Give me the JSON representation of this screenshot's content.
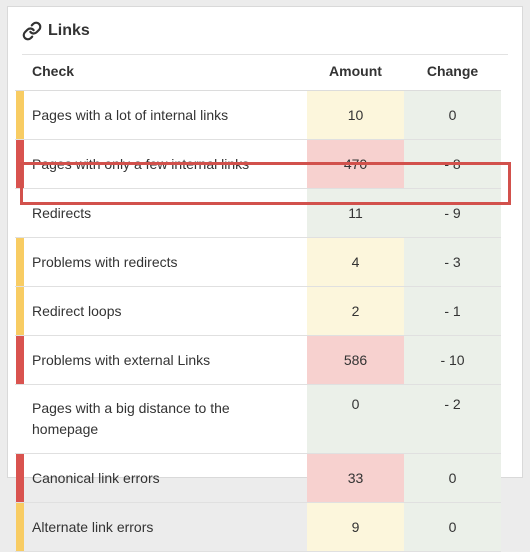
{
  "panel": {
    "title": "Links",
    "icon": "link-icon"
  },
  "table": {
    "headers": {
      "check": "Check",
      "amount": "Amount",
      "change": "Change"
    },
    "rows": [
      {
        "check": "Pages with a lot of internal links",
        "amount": "10",
        "change": "0",
        "severity": "warning"
      },
      {
        "check": "Pages with only a few internal links",
        "amount": "470",
        "change": "- 8",
        "severity": "error"
      },
      {
        "check": "Redirects",
        "amount": "11",
        "change": "- 9",
        "severity": "none",
        "highlighted": true
      },
      {
        "check": "Problems with redirects",
        "amount": "4",
        "change": "- 3",
        "severity": "warning"
      },
      {
        "check": "Redirect loops",
        "amount": "2",
        "change": "- 1",
        "severity": "warning"
      },
      {
        "check": "Problems with external Links",
        "amount": "586",
        "change": "- 10",
        "severity": "error"
      },
      {
        "check": "Pages with a big distance to the homepage",
        "amount": "0",
        "change": "- 2",
        "severity": "none"
      },
      {
        "check": "Canonical link errors",
        "amount": "33",
        "change": "0",
        "severity": "error"
      },
      {
        "check": "Alternate link errors",
        "amount": "9",
        "change": "0",
        "severity": "warning"
      }
    ]
  },
  "colors": {
    "warning": "#f8cc63",
    "error": "#d9534f",
    "highlight_border": "#d2514c",
    "change_bg": "#ebf0e9"
  }
}
